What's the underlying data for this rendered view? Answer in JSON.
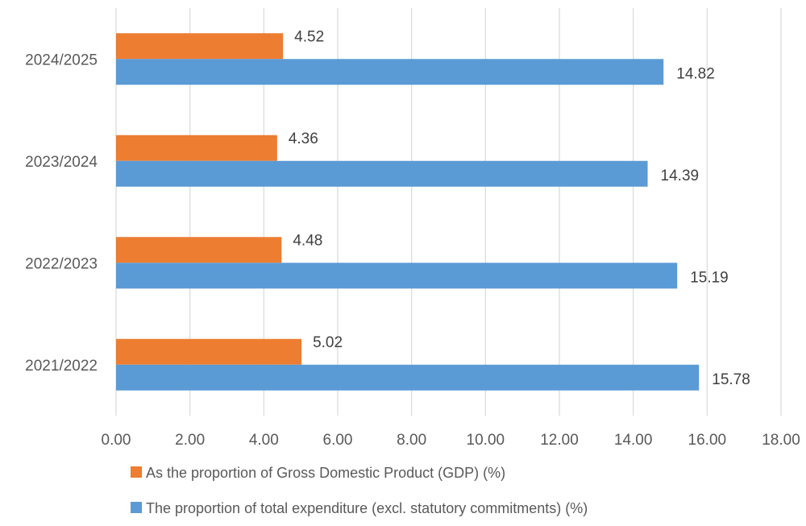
{
  "chart_data": {
    "type": "bar",
    "orientation": "horizontal",
    "categories": [
      "2024/2025",
      "2023/2024",
      "2022/2023",
      "2021/2022"
    ],
    "series": [
      {
        "name": "As the proportion of Gross Domestic Product (GDP) (%)",
        "color": "#ED7D31",
        "values": [
          4.52,
          4.36,
          4.48,
          5.02
        ],
        "labels": [
          "4.52",
          "4.36",
          "4.48",
          "5.02"
        ]
      },
      {
        "name": "The proportion of total expenditure (excl. statutory commitments) (%)",
        "color": "#5B9BD5",
        "values": [
          14.82,
          14.39,
          15.19,
          15.78
        ],
        "labels": [
          "14.82",
          "14.39",
          "15.19",
          "15.78"
        ]
      }
    ],
    "xlim": [
      0,
      18
    ],
    "xticks": [
      "0.00",
      "2.00",
      "4.00",
      "6.00",
      "8.00",
      "10.00",
      "12.00",
      "14.00",
      "16.00",
      "18.00"
    ],
    "xtick_values": [
      0,
      2,
      4,
      6,
      8,
      10,
      12,
      14,
      16,
      18
    ],
    "grid": "vertical",
    "legend_position": "bottom",
    "title": "",
    "xlabel": "",
    "ylabel": ""
  }
}
